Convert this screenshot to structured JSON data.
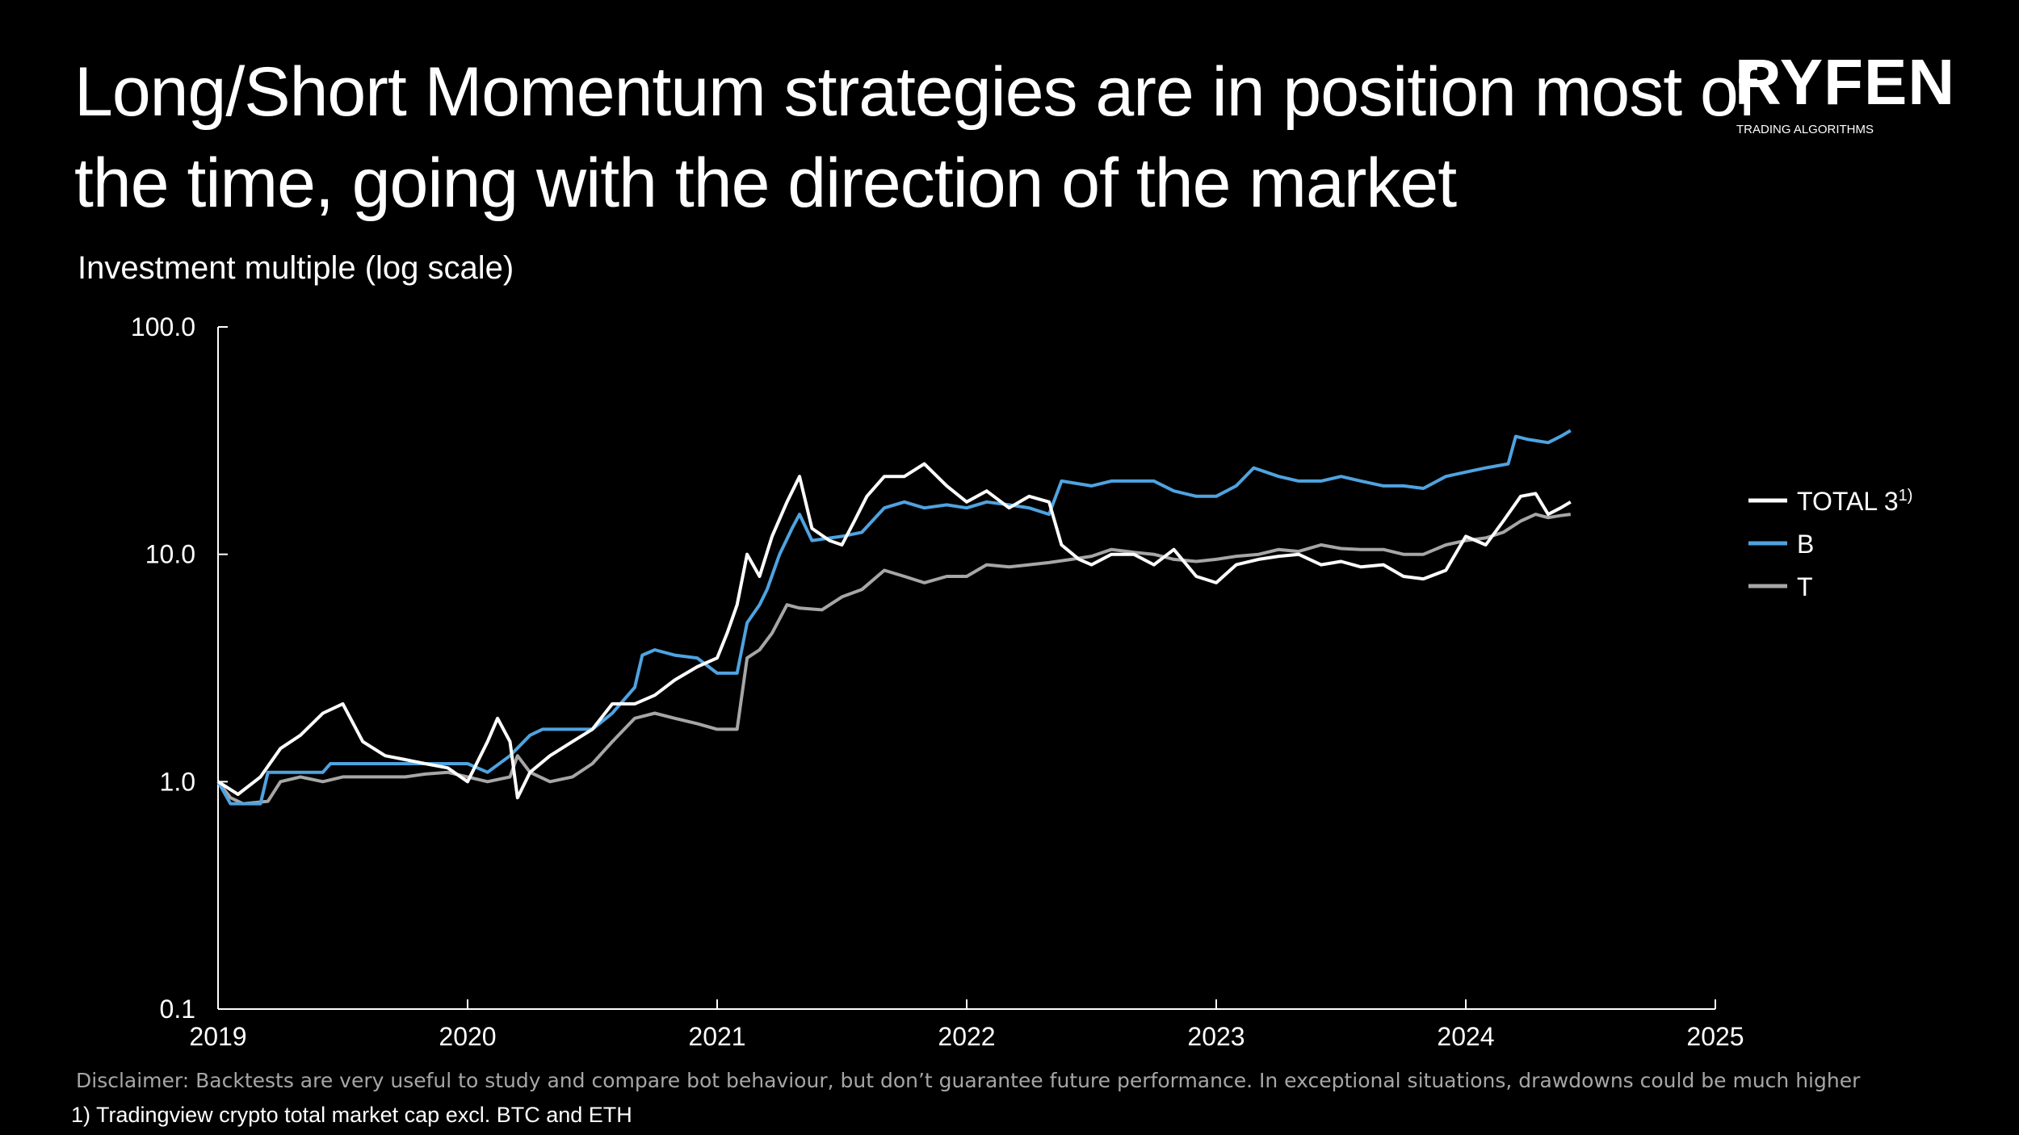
{
  "header": {
    "title_line1": "Long/Short Momentum strategies are in position most of",
    "title_line2": "the time, going with the direction of the market",
    "subtitle": "Investment multiple (log scale)"
  },
  "logo": {
    "brand": "RYFEN",
    "tagline": "TRADING ALGORITHMS"
  },
  "footer": {
    "disclaimer": "Disclaimer: Backtests are very useful to study and compare bot behaviour, but don’t guarantee future performance. In exceptional situations, drawdowns could be much higher",
    "footnote": "1) Tradingview crypto total market cap excl. BTC and ETH"
  },
  "chart_data": {
    "type": "line",
    "ylabel": "Investment multiple (log scale)",
    "yscale": "log",
    "ylim": [
      0.1,
      100
    ],
    "yticks": [
      "0.1",
      "1.0",
      "10.0",
      "100.0"
    ],
    "xlim": [
      2019,
      2025
    ],
    "xticks": [
      "2019",
      "2020",
      "2021",
      "2022",
      "2023",
      "2024",
      "2025"
    ],
    "legend_position": "right",
    "series": [
      {
        "name": "TOTAL 3",
        "name_superscript": "1)",
        "color": "#ffffff",
        "points": [
          [
            2019.0,
            1.0
          ],
          [
            2019.08,
            0.88
          ],
          [
            2019.17,
            1.05
          ],
          [
            2019.25,
            1.4
          ],
          [
            2019.33,
            1.6
          ],
          [
            2019.42,
            2.0
          ],
          [
            2019.5,
            2.2
          ],
          [
            2019.58,
            1.5
          ],
          [
            2019.67,
            1.3
          ],
          [
            2019.75,
            1.25
          ],
          [
            2019.83,
            1.2
          ],
          [
            2019.92,
            1.15
          ],
          [
            2020.0,
            1.0
          ],
          [
            2020.08,
            1.5
          ],
          [
            2020.12,
            1.9
          ],
          [
            2020.17,
            1.5
          ],
          [
            2020.2,
            0.85
          ],
          [
            2020.25,
            1.1
          ],
          [
            2020.33,
            1.3
          ],
          [
            2020.42,
            1.5
          ],
          [
            2020.5,
            1.7
          ],
          [
            2020.58,
            2.2
          ],
          [
            2020.67,
            2.2
          ],
          [
            2020.75,
            2.4
          ],
          [
            2020.83,
            2.8
          ],
          [
            2020.92,
            3.2
          ],
          [
            2021.0,
            3.5
          ],
          [
            2021.04,
            4.5
          ],
          [
            2021.08,
            6.0
          ],
          [
            2021.12,
            10.0
          ],
          [
            2021.17,
            8.0
          ],
          [
            2021.22,
            12.0
          ],
          [
            2021.28,
            17.0
          ],
          [
            2021.33,
            22.0
          ],
          [
            2021.38,
            13.0
          ],
          [
            2021.45,
            11.5
          ],
          [
            2021.5,
            11.0
          ],
          [
            2021.55,
            14.0
          ],
          [
            2021.6,
            18.0
          ],
          [
            2021.67,
            22.0
          ],
          [
            2021.75,
            22.0
          ],
          [
            2021.83,
            25.0
          ],
          [
            2021.92,
            20.0
          ],
          [
            2022.0,
            17.0
          ],
          [
            2022.08,
            19.0
          ],
          [
            2022.17,
            16.0
          ],
          [
            2022.25,
            18.0
          ],
          [
            2022.33,
            17.0
          ],
          [
            2022.38,
            11.0
          ],
          [
            2022.45,
            9.5
          ],
          [
            2022.5,
            9.0
          ],
          [
            2022.58,
            10.0
          ],
          [
            2022.67,
            10.0
          ],
          [
            2022.75,
            9.0
          ],
          [
            2022.83,
            10.5
          ],
          [
            2022.92,
            8.0
          ],
          [
            2023.0,
            7.5
          ],
          [
            2023.08,
            9.0
          ],
          [
            2023.17,
            9.5
          ],
          [
            2023.25,
            9.8
          ],
          [
            2023.33,
            10.0
          ],
          [
            2023.42,
            9.0
          ],
          [
            2023.5,
            9.3
          ],
          [
            2023.58,
            8.8
          ],
          [
            2023.67,
            9.0
          ],
          [
            2023.75,
            8.0
          ],
          [
            2023.83,
            7.8
          ],
          [
            2023.92,
            8.5
          ],
          [
            2024.0,
            12.0
          ],
          [
            2024.08,
            11.0
          ],
          [
            2024.15,
            14.0
          ],
          [
            2024.22,
            18.0
          ],
          [
            2024.28,
            18.5
          ],
          [
            2024.33,
            15.0
          ],
          [
            2024.38,
            16.0
          ],
          [
            2024.42,
            17.0
          ]
        ]
      },
      {
        "name": "B",
        "color": "#4fa3e0",
        "points": [
          [
            2019.0,
            1.0
          ],
          [
            2019.05,
            0.8
          ],
          [
            2019.17,
            0.8
          ],
          [
            2019.2,
            1.1
          ],
          [
            2019.42,
            1.1
          ],
          [
            2019.45,
            1.2
          ],
          [
            2019.58,
            1.2
          ],
          [
            2020.0,
            1.2
          ],
          [
            2020.08,
            1.1
          ],
          [
            2020.17,
            1.3
          ],
          [
            2020.25,
            1.6
          ],
          [
            2020.3,
            1.7
          ],
          [
            2020.5,
            1.7
          ],
          [
            2020.58,
            2.0
          ],
          [
            2020.67,
            2.6
          ],
          [
            2020.7,
            3.6
          ],
          [
            2020.75,
            3.8
          ],
          [
            2020.83,
            3.6
          ],
          [
            2020.92,
            3.5
          ],
          [
            2021.0,
            3.0
          ],
          [
            2021.08,
            3.0
          ],
          [
            2021.12,
            5.0
          ],
          [
            2021.17,
            6.0
          ],
          [
            2021.2,
            7.0
          ],
          [
            2021.25,
            10.0
          ],
          [
            2021.3,
            13.0
          ],
          [
            2021.33,
            15.0
          ],
          [
            2021.38,
            11.5
          ],
          [
            2021.5,
            12.0
          ],
          [
            2021.58,
            12.5
          ],
          [
            2021.67,
            16.0
          ],
          [
            2021.75,
            17.0
          ],
          [
            2021.83,
            16.0
          ],
          [
            2021.92,
            16.5
          ],
          [
            2022.0,
            16.0
          ],
          [
            2022.08,
            17.0
          ],
          [
            2022.17,
            16.5
          ],
          [
            2022.25,
            16.0
          ],
          [
            2022.33,
            15.0
          ],
          [
            2022.38,
            21.0
          ],
          [
            2022.5,
            20.0
          ],
          [
            2022.58,
            21.0
          ],
          [
            2022.67,
            21.0
          ],
          [
            2022.75,
            21.0
          ],
          [
            2022.83,
            19.0
          ],
          [
            2022.92,
            18.0
          ],
          [
            2023.0,
            18.0
          ],
          [
            2023.08,
            20.0
          ],
          [
            2023.15,
            24.0
          ],
          [
            2023.25,
            22.0
          ],
          [
            2023.33,
            21.0
          ],
          [
            2023.42,
            21.0
          ],
          [
            2023.5,
            22.0
          ],
          [
            2023.58,
            21.0
          ],
          [
            2023.67,
            20.0
          ],
          [
            2023.75,
            20.0
          ],
          [
            2023.83,
            19.5
          ],
          [
            2023.92,
            22.0
          ],
          [
            2024.0,
            23.0
          ],
          [
            2024.08,
            24.0
          ],
          [
            2024.17,
            25.0
          ],
          [
            2024.2,
            33.0
          ],
          [
            2024.25,
            32.0
          ],
          [
            2024.33,
            31.0
          ],
          [
            2024.38,
            33.0
          ],
          [
            2024.42,
            35.0
          ]
        ]
      },
      {
        "name": "T",
        "color": "#a6a6a6",
        "points": [
          [
            2019.0,
            1.0
          ],
          [
            2019.05,
            0.85
          ],
          [
            2019.1,
            0.8
          ],
          [
            2019.2,
            0.82
          ],
          [
            2019.25,
            1.0
          ],
          [
            2019.33,
            1.05
          ],
          [
            2019.42,
            1.0
          ],
          [
            2019.5,
            1.05
          ],
          [
            2019.58,
            1.05
          ],
          [
            2019.67,
            1.05
          ],
          [
            2019.75,
            1.05
          ],
          [
            2019.83,
            1.08
          ],
          [
            2019.92,
            1.1
          ],
          [
            2020.0,
            1.05
          ],
          [
            2020.08,
            1.0
          ],
          [
            2020.17,
            1.05
          ],
          [
            2020.2,
            1.3
          ],
          [
            2020.25,
            1.1
          ],
          [
            2020.33,
            1.0
          ],
          [
            2020.42,
            1.05
          ],
          [
            2020.5,
            1.2
          ],
          [
            2020.58,
            1.5
          ],
          [
            2020.67,
            1.9
          ],
          [
            2020.75,
            2.0
          ],
          [
            2020.83,
            1.9
          ],
          [
            2020.92,
            1.8
          ],
          [
            2021.0,
            1.7
          ],
          [
            2021.08,
            1.7
          ],
          [
            2021.12,
            3.5
          ],
          [
            2021.17,
            3.8
          ],
          [
            2021.22,
            4.5
          ],
          [
            2021.28,
            6.0
          ],
          [
            2021.33,
            5.8
          ],
          [
            2021.42,
            5.7
          ],
          [
            2021.5,
            6.5
          ],
          [
            2021.58,
            7.0
          ],
          [
            2021.67,
            8.5
          ],
          [
            2021.75,
            8.0
          ],
          [
            2021.83,
            7.5
          ],
          [
            2021.92,
            8.0
          ],
          [
            2022.0,
            8.0
          ],
          [
            2022.08,
            9.0
          ],
          [
            2022.17,
            8.8
          ],
          [
            2022.25,
            9.0
          ],
          [
            2022.33,
            9.2
          ],
          [
            2022.42,
            9.5
          ],
          [
            2022.5,
            9.8
          ],
          [
            2022.58,
            10.5
          ],
          [
            2022.67,
            10.2
          ],
          [
            2022.75,
            10.0
          ],
          [
            2022.83,
            9.5
          ],
          [
            2022.92,
            9.3
          ],
          [
            2023.0,
            9.5
          ],
          [
            2023.08,
            9.8
          ],
          [
            2023.17,
            10.0
          ],
          [
            2023.25,
            10.5
          ],
          [
            2023.33,
            10.3
          ],
          [
            2023.42,
            11.0
          ],
          [
            2023.5,
            10.6
          ],
          [
            2023.58,
            10.5
          ],
          [
            2023.67,
            10.5
          ],
          [
            2023.75,
            10.0
          ],
          [
            2023.83,
            10.0
          ],
          [
            2023.92,
            11.0
          ],
          [
            2024.0,
            11.5
          ],
          [
            2024.08,
            11.8
          ],
          [
            2024.15,
            12.5
          ],
          [
            2024.22,
            14.0
          ],
          [
            2024.28,
            15.0
          ],
          [
            2024.33,
            14.5
          ],
          [
            2024.38,
            14.8
          ],
          [
            2024.42,
            15.0
          ]
        ]
      }
    ]
  }
}
